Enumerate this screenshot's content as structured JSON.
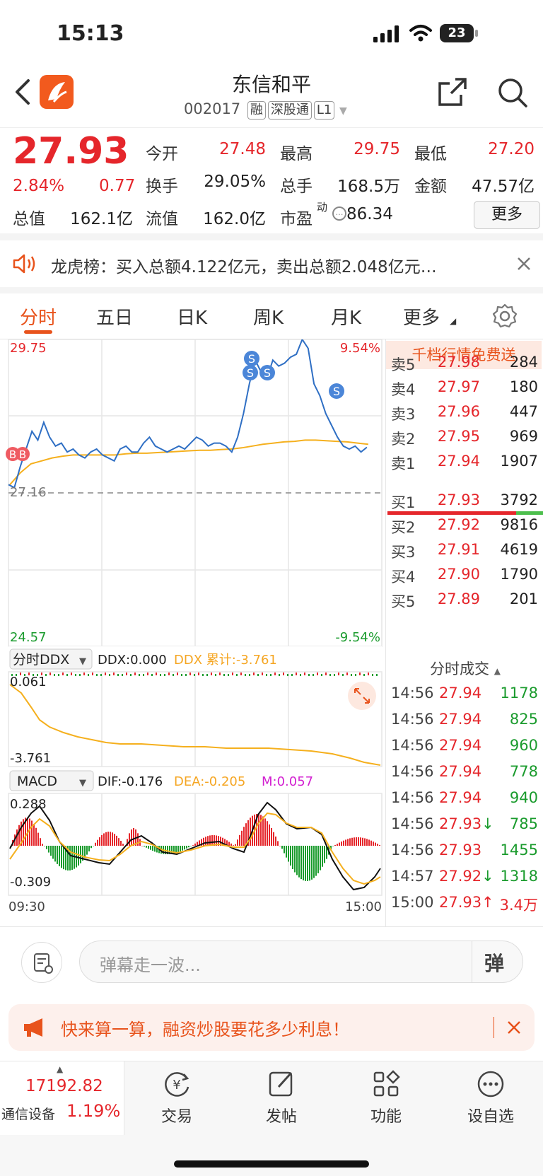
{
  "status_bar": {
    "time": "15:13",
    "battery": "23"
  },
  "header": {
    "title": "东信和平",
    "code": "002017",
    "tags": [
      "融",
      "深股通",
      "L1"
    ]
  },
  "quote": {
    "price": "27.93",
    "change_pct": "2.84%",
    "change": "0.77",
    "stats": [
      {
        "label": "今开",
        "value": "27.48",
        "color": "#e5262b"
      },
      {
        "label": "最高",
        "value": "29.75",
        "color": "#e5262b"
      },
      {
        "label": "最低",
        "value": "27.20",
        "color": "#e5262b"
      },
      {
        "label": "换手",
        "value": "29.05%",
        "color": "#222"
      },
      {
        "label": "总手",
        "value": "168.5万",
        "color": "#222"
      },
      {
        "label": "金额",
        "value": "47.57亿",
        "color": "#222"
      },
      {
        "label": "总值",
        "value": "162.1亿",
        "color": "#222"
      },
      {
        "label": "流值",
        "value": "162.0亿",
        "color": "#222"
      },
      {
        "label": "市盈",
        "value": "86.34",
        "color": "#222"
      }
    ],
    "pe_sup": "动",
    "more_label": "更多"
  },
  "banner": {
    "text": "龙虎榜：买入总额4.122亿元，卖出总额2.048亿元…"
  },
  "tabs": [
    {
      "label": "分时"
    },
    {
      "label": "五日"
    },
    {
      "label": "日K"
    },
    {
      "label": "周K"
    },
    {
      "label": "月K"
    },
    {
      "label": "更多"
    }
  ],
  "chart": {
    "y_high": "29.75",
    "y_low": "24.57",
    "pct_high": "9.54%",
    "pct_low": "-9.54%",
    "prev_close": "27.16",
    "x_start": "09:30",
    "x_end": "15:00",
    "ddx_selector": "分时DDX",
    "ddx_value": "DDX:0.000",
    "ddx_cum": "DDX 累计:-3.761",
    "ddx_top": "0.061",
    "ddx_bottom": "-3.761",
    "macd_selector": "MACD",
    "dif": "DIF:-0.176",
    "dea": "DEA:-0.205",
    "m": "M:0.057",
    "macd_top": "0.288",
    "macd_bottom": "-0.309",
    "markers": {
      "buy": "B",
      "sell": "S"
    }
  },
  "chart_data": {
    "type": "line",
    "y_range": [
      24.57,
      29.75
    ],
    "prev_close": 27.16,
    "x_range": [
      "09:30",
      "15:00"
    ],
    "series": [
      {
        "values": [
          27.3,
          27.25,
          27.6,
          27.9,
          28.2,
          28.05,
          28.35,
          28.1,
          27.95,
          28.0,
          27.85,
          27.9,
          27.8,
          27.75,
          27.85,
          27.9,
          27.8,
          27.75,
          27.7,
          27.9,
          27.95,
          27.85,
          27.85,
          28.0,
          28.1,
          27.95,
          27.9,
          27.85,
          27.9,
          27.95,
          27.9,
          28.0,
          28.1,
          28.05,
          27.95,
          28.0,
          28.0,
          27.95,
          27.85,
          28.1,
          28.5,
          29.0,
          29.4,
          29.2,
          29.1,
          29.4,
          29.3,
          29.35,
          29.45,
          29.5,
          29.75,
          29.6,
          29.0,
          28.8,
          28.5,
          28.3,
          28.1,
          27.95,
          27.9,
          27.95,
          27.85,
          27.93
        ]
      },
      {
        "values": [
          27.3,
          27.5,
          27.65,
          27.7,
          27.75,
          27.78,
          27.8,
          27.8,
          27.8,
          27.8,
          27.8,
          27.82,
          27.83,
          27.83,
          27.84,
          27.85,
          27.86,
          27.87,
          27.88,
          27.88,
          27.89,
          27.9,
          27.92,
          27.95,
          27.98,
          28.0,
          28.02,
          28.03,
          28.05,
          28.05,
          28.04,
          28.03,
          28.02,
          28.0,
          27.98
        ]
      }
    ]
  },
  "order_book": {
    "promo": "千档行情免费送",
    "asks": [
      {
        "label": "卖5",
        "price": "27.98",
        "vol": "284"
      },
      {
        "label": "卖4",
        "price": "27.97",
        "vol": "180"
      },
      {
        "label": "卖3",
        "price": "27.96",
        "vol": "447"
      },
      {
        "label": "卖2",
        "price": "27.95",
        "vol": "969"
      },
      {
        "label": "卖1",
        "price": "27.94",
        "vol": "1907"
      }
    ],
    "bids": [
      {
        "label": "买1",
        "price": "27.93",
        "vol": "3792"
      },
      {
        "label": "买2",
        "price": "27.92",
        "vol": "9816"
      },
      {
        "label": "买3",
        "price": "27.91",
        "vol": "4619"
      },
      {
        "label": "买4",
        "price": "27.90",
        "vol": "1790"
      },
      {
        "label": "买5",
        "price": "27.89",
        "vol": "201"
      }
    ]
  },
  "trades": {
    "title": "分时成交",
    "rows": [
      {
        "time": "14:56",
        "price": "27.94",
        "arrow": "",
        "vol": "1178"
      },
      {
        "time": "14:56",
        "price": "27.94",
        "arrow": "",
        "vol": "825"
      },
      {
        "time": "14:56",
        "price": "27.94",
        "arrow": "",
        "vol": "960"
      },
      {
        "time": "14:56",
        "price": "27.94",
        "arrow": "",
        "vol": "778"
      },
      {
        "time": "14:56",
        "price": "27.94",
        "arrow": "",
        "vol": "940"
      },
      {
        "time": "14:56",
        "price": "27.93",
        "arrow": "↓",
        "vol": "785"
      },
      {
        "time": "14:56",
        "price": "27.93",
        "arrow": "",
        "vol": "1455"
      },
      {
        "time": "14:57",
        "price": "27.92",
        "arrow": "↓",
        "vol": "1318"
      },
      {
        "time": "15:00",
        "price": "27.93",
        "arrow": "↑",
        "vol": "3.4万"
      }
    ]
  },
  "comment": {
    "placeholder": "弹幕走一波...",
    "danmu": "弹"
  },
  "promo": {
    "text": "快来算一算，融资炒股要花多少利息！"
  },
  "bottom": {
    "index_value": "17192.82",
    "sector": "通信设备",
    "sector_pct": "1.19%",
    "items": [
      {
        "label": "交易"
      },
      {
        "label": "发帖"
      },
      {
        "label": "功能"
      },
      {
        "label": "设自选"
      }
    ]
  },
  "colors": {
    "up": "#e5262b",
    "down": "#1a9b2d",
    "line": "#2f6fc4",
    "avg": "#f5b01e",
    "accent": "#e8531c"
  }
}
